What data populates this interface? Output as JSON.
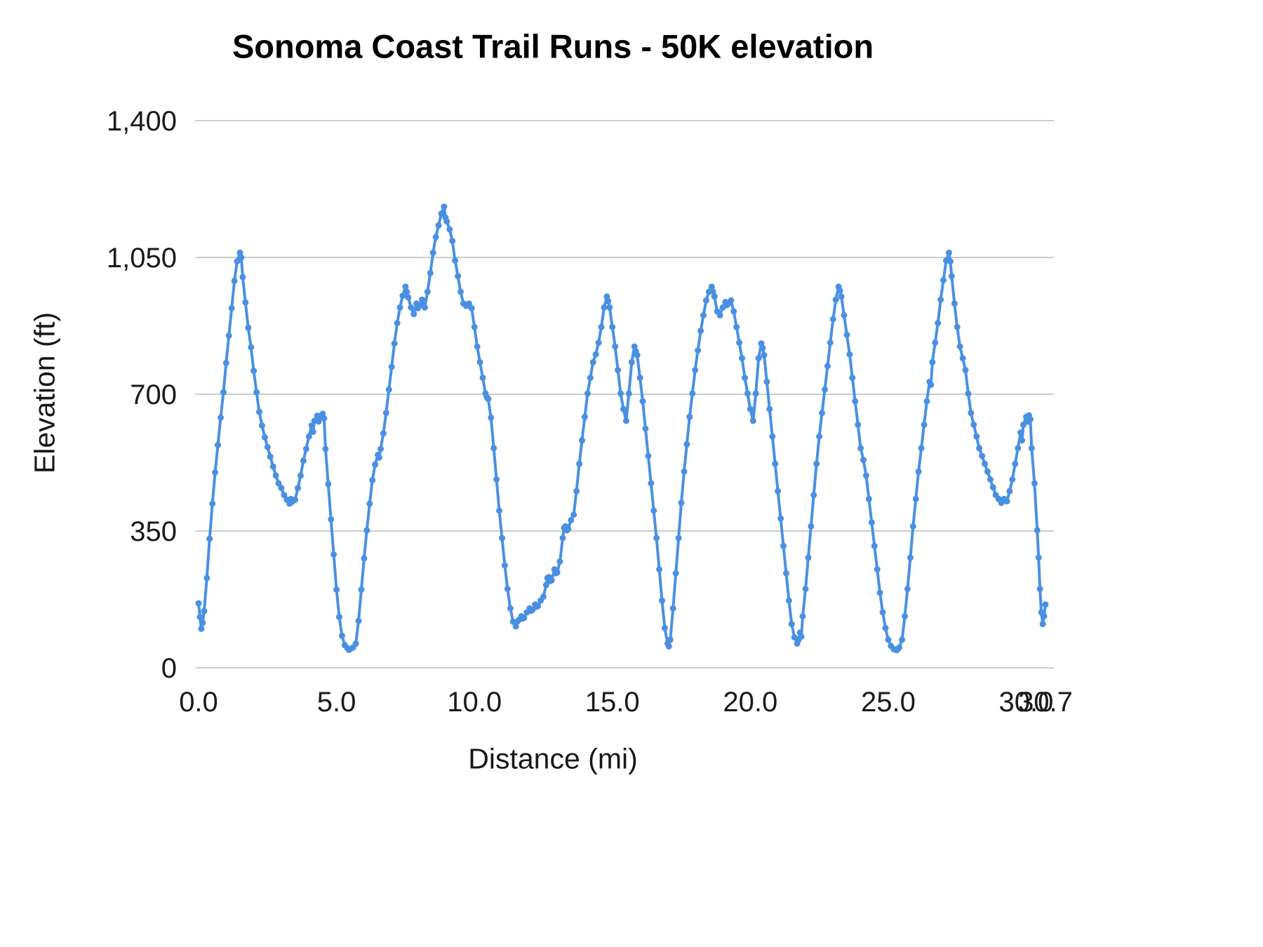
{
  "chart_data": {
    "type": "line",
    "title": "Sonoma Coast Trail Runs - 50K elevation",
    "xlabel": "Distance (mi)",
    "ylabel": "Elevation (ft)",
    "xlim": [
      0,
      30.7
    ],
    "ylim": [
      0,
      1400
    ],
    "grid": "horizontal-only",
    "legend": "none",
    "marker": "circle",
    "colors": {
      "line": "#4a90e2",
      "grid": "#cccccc",
      "tick_text": "#1a1a1a"
    },
    "yticks": [
      {
        "v": 0,
        "label": "0"
      },
      {
        "v": 350,
        "label": "350"
      },
      {
        "v": 700,
        "label": "700"
      },
      {
        "v": 1050,
        "label": "1,050"
      },
      {
        "v": 1400,
        "label": "1,400"
      }
    ],
    "xticks": [
      {
        "v": 0,
        "label": "0.0"
      },
      {
        "v": 5,
        "label": "5.0"
      },
      {
        "v": 10,
        "label": "10.0"
      },
      {
        "v": 15,
        "label": "15.0"
      },
      {
        "v": 20,
        "label": "20.0"
      },
      {
        "v": 25,
        "label": "25.0"
      },
      {
        "v": 30,
        "label": "30.0"
      },
      {
        "v": 30.7,
        "label": "30.7"
      }
    ],
    "series_name": "Elevation (ft)",
    "points": [
      [
        0,
        165
      ],
      [
        0.05,
        130
      ],
      [
        0.1,
        100
      ],
      [
        0.15,
        115
      ],
      [
        0.2,
        145
      ],
      [
        0.3,
        230
      ],
      [
        0.4,
        330
      ],
      [
        0.5,
        420
      ],
      [
        0.6,
        500
      ],
      [
        0.7,
        570
      ],
      [
        0.8,
        640
      ],
      [
        0.9,
        705
      ],
      [
        1.0,
        780
      ],
      [
        1.1,
        850
      ],
      [
        1.2,
        920
      ],
      [
        1.3,
        990
      ],
      [
        1.4,
        1040
      ],
      [
        1.5,
        1062
      ],
      [
        1.55,
        1050
      ],
      [
        1.6,
        1000
      ],
      [
        1.7,
        935
      ],
      [
        1.8,
        870
      ],
      [
        1.9,
        820
      ],
      [
        2.0,
        760
      ],
      [
        2.1,
        705
      ],
      [
        2.2,
        655
      ],
      [
        2.3,
        620
      ],
      [
        2.4,
        590
      ],
      [
        2.5,
        565
      ],
      [
        2.6,
        540
      ],
      [
        2.7,
        515
      ],
      [
        2.8,
        492
      ],
      [
        2.9,
        472
      ],
      [
        3.0,
        460
      ],
      [
        3.1,
        442
      ],
      [
        3.2,
        430
      ],
      [
        3.3,
        420
      ],
      [
        3.35,
        432
      ],
      [
        3.4,
        425
      ],
      [
        3.5,
        430
      ],
      [
        3.6,
        460
      ],
      [
        3.7,
        492
      ],
      [
        3.8,
        530
      ],
      [
        3.9,
        560
      ],
      [
        4.0,
        592
      ],
      [
        4.1,
        620
      ],
      [
        4.15,
        604
      ],
      [
        4.2,
        632
      ],
      [
        4.3,
        645
      ],
      [
        4.35,
        630
      ],
      [
        4.4,
        642
      ],
      [
        4.5,
        650
      ],
      [
        4.55,
        638
      ],
      [
        4.6,
        560
      ],
      [
        4.7,
        470
      ],
      [
        4.8,
        380
      ],
      [
        4.9,
        290
      ],
      [
        5.0,
        200
      ],
      [
        5.1,
        130
      ],
      [
        5.2,
        82
      ],
      [
        5.3,
        58
      ],
      [
        5.4,
        50
      ],
      [
        5.45,
        46
      ],
      [
        5.5,
        48
      ],
      [
        5.6,
        52
      ],
      [
        5.7,
        62
      ],
      [
        5.8,
        120
      ],
      [
        5.9,
        200
      ],
      [
        6.0,
        280
      ],
      [
        6.1,
        352
      ],
      [
        6.2,
        420
      ],
      [
        6.3,
        480
      ],
      [
        6.4,
        520
      ],
      [
        6.5,
        545
      ],
      [
        6.55,
        538
      ],
      [
        6.6,
        560
      ],
      [
        6.7,
        600
      ],
      [
        6.8,
        652
      ],
      [
        6.9,
        712
      ],
      [
        7.0,
        770
      ],
      [
        7.1,
        830
      ],
      [
        7.2,
        882
      ],
      [
        7.3,
        922
      ],
      [
        7.4,
        952
      ],
      [
        7.5,
        975
      ],
      [
        7.55,
        962
      ],
      [
        7.6,
        948
      ],
      [
        7.7,
        922
      ],
      [
        7.8,
        905
      ],
      [
        7.9,
        932
      ],
      [
        7.95,
        920
      ],
      [
        8.0,
        926
      ],
      [
        8.1,
        942
      ],
      [
        8.15,
        928
      ],
      [
        8.2,
        922
      ],
      [
        8.3,
        962
      ],
      [
        8.4,
        1010
      ],
      [
        8.5,
        1062
      ],
      [
        8.6,
        1102
      ],
      [
        8.7,
        1132
      ],
      [
        8.8,
        1162
      ],
      [
        8.9,
        1180
      ],
      [
        8.95,
        1152
      ],
      [
        9.0,
        1142
      ],
      [
        9.1,
        1122
      ],
      [
        9.2,
        1092
      ],
      [
        9.3,
        1042
      ],
      [
        9.4,
        1002
      ],
      [
        9.5,
        962
      ],
      [
        9.6,
        932
      ],
      [
        9.7,
        926
      ],
      [
        9.8,
        932
      ],
      [
        9.9,
        920
      ],
      [
        10.0,
        872
      ],
      [
        10.1,
        822
      ],
      [
        10.2,
        782
      ],
      [
        10.3,
        742
      ],
      [
        10.4,
        702
      ],
      [
        10.45,
        692
      ],
      [
        10.5,
        688
      ],
      [
        10.6,
        640
      ],
      [
        10.7,
        562
      ],
      [
        10.8,
        482
      ],
      [
        10.9,
        402
      ],
      [
        11.0,
        332
      ],
      [
        11.1,
        262
      ],
      [
        11.2,
        202
      ],
      [
        11.3,
        152
      ],
      [
        11.4,
        118
      ],
      [
        11.5,
        106
      ],
      [
        11.55,
        118
      ],
      [
        11.6,
        122
      ],
      [
        11.7,
        132
      ],
      [
        11.75,
        126
      ],
      [
        11.8,
        128
      ],
      [
        11.9,
        142
      ],
      [
        12.0,
        152
      ],
      [
        12.05,
        146
      ],
      [
        12.1,
        148
      ],
      [
        12.2,
        162
      ],
      [
        12.25,
        156
      ],
      [
        12.3,
        158
      ],
      [
        12.4,
        172
      ],
      [
        12.5,
        182
      ],
      [
        12.6,
        212
      ],
      [
        12.65,
        230
      ],
      [
        12.7,
        232
      ],
      [
        12.75,
        222
      ],
      [
        12.8,
        224
      ],
      [
        12.9,
        252
      ],
      [
        12.95,
        242
      ],
      [
        13.0,
        244
      ],
      [
        13.1,
        272
      ],
      [
        13.2,
        332
      ],
      [
        13.25,
        358
      ],
      [
        13.3,
        362
      ],
      [
        13.35,
        352
      ],
      [
        13.4,
        356
      ],
      [
        13.5,
        378
      ],
      [
        13.6,
        392
      ],
      [
        13.7,
        452
      ],
      [
        13.8,
        522
      ],
      [
        13.9,
        582
      ],
      [
        14.0,
        642
      ],
      [
        14.1,
        702
      ],
      [
        14.2,
        742
      ],
      [
        14.3,
        782
      ],
      [
        14.4,
        802
      ],
      [
        14.5,
        832
      ],
      [
        14.6,
        872
      ],
      [
        14.7,
        922
      ],
      [
        14.8,
        950
      ],
      [
        14.85,
        938
      ],
      [
        14.9,
        922
      ],
      [
        15.0,
        872
      ],
      [
        15.1,
        822
      ],
      [
        15.2,
        762
      ],
      [
        15.3,
        702
      ],
      [
        15.4,
        662
      ],
      [
        15.5,
        632
      ],
      [
        15.6,
        702
      ],
      [
        15.7,
        782
      ],
      [
        15.8,
        822
      ],
      [
        15.85,
        810
      ],
      [
        15.9,
        800
      ],
      [
        16.0,
        742
      ],
      [
        16.1,
        682
      ],
      [
        16.2,
        612
      ],
      [
        16.3,
        542
      ],
      [
        16.4,
        472
      ],
      [
        16.5,
        402
      ],
      [
        16.6,
        332
      ],
      [
        16.7,
        252
      ],
      [
        16.8,
        172
      ],
      [
        16.9,
        102
      ],
      [
        17.0,
        62
      ],
      [
        17.05,
        55
      ],
      [
        17.1,
        72
      ],
      [
        17.2,
        152
      ],
      [
        17.3,
        242
      ],
      [
        17.4,
        332
      ],
      [
        17.5,
        422
      ],
      [
        17.6,
        502
      ],
      [
        17.7,
        572
      ],
      [
        17.8,
        642
      ],
      [
        17.9,
        702
      ],
      [
        18.0,
        762
      ],
      [
        18.1,
        812
      ],
      [
        18.2,
        862
      ],
      [
        18.3,
        902
      ],
      [
        18.4,
        940
      ],
      [
        18.5,
        962
      ],
      [
        18.6,
        975
      ],
      [
        18.65,
        962
      ],
      [
        18.7,
        950
      ],
      [
        18.8,
        912
      ],
      [
        18.9,
        902
      ],
      [
        19.0,
        922
      ],
      [
        19.1,
        936
      ],
      [
        19.15,
        928
      ],
      [
        19.2,
        932
      ],
      [
        19.3,
        940
      ],
      [
        19.4,
        912
      ],
      [
        19.5,
        872
      ],
      [
        19.6,
        832
      ],
      [
        19.7,
        792
      ],
      [
        19.8,
        742
      ],
      [
        19.9,
        702
      ],
      [
        20.0,
        662
      ],
      [
        20.1,
        632
      ],
      [
        20.2,
        702
      ],
      [
        20.3,
        792
      ],
      [
        20.4,
        830
      ],
      [
        20.45,
        818
      ],
      [
        20.5,
        800
      ],
      [
        20.6,
        732
      ],
      [
        20.7,
        662
      ],
      [
        20.8,
        592
      ],
      [
        20.9,
        522
      ],
      [
        21.0,
        452
      ],
      [
        21.1,
        382
      ],
      [
        21.2,
        312
      ],
      [
        21.3,
        242
      ],
      [
        21.4,
        172
      ],
      [
        21.5,
        112
      ],
      [
        21.6,
        78
      ],
      [
        21.7,
        62
      ],
      [
        21.75,
        72
      ],
      [
        21.8,
        90
      ],
      [
        21.85,
        80
      ],
      [
        21.9,
        132
      ],
      [
        22.0,
        202
      ],
      [
        22.1,
        282
      ],
      [
        22.2,
        362
      ],
      [
        22.3,
        442
      ],
      [
        22.4,
        522
      ],
      [
        22.5,
        592
      ],
      [
        22.6,
        652
      ],
      [
        22.7,
        712
      ],
      [
        22.8,
        772
      ],
      [
        22.9,
        832
      ],
      [
        23.0,
        892
      ],
      [
        23.1,
        942
      ],
      [
        23.2,
        975
      ],
      [
        23.25,
        965
      ],
      [
        23.3,
        950
      ],
      [
        23.4,
        902
      ],
      [
        23.5,
        852
      ],
      [
        23.6,
        802
      ],
      [
        23.7,
        742
      ],
      [
        23.8,
        682
      ],
      [
        23.9,
        622
      ],
      [
        24.0,
        562
      ],
      [
        24.1,
        532
      ],
      [
        24.2,
        492
      ],
      [
        24.3,
        432
      ],
      [
        24.4,
        372
      ],
      [
        24.5,
        312
      ],
      [
        24.6,
        252
      ],
      [
        24.7,
        192
      ],
      [
        24.8,
        142
      ],
      [
        24.9,
        102
      ],
      [
        25.0,
        72
      ],
      [
        25.1,
        56
      ],
      [
        25.2,
        48
      ],
      [
        25.3,
        45
      ],
      [
        25.35,
        48
      ],
      [
        25.4,
        52
      ],
      [
        25.5,
        72
      ],
      [
        25.6,
        132
      ],
      [
        25.7,
        202
      ],
      [
        25.8,
        282
      ],
      [
        25.9,
        362
      ],
      [
        26.0,
        432
      ],
      [
        26.1,
        502
      ],
      [
        26.2,
        562
      ],
      [
        26.3,
        622
      ],
      [
        26.4,
        682
      ],
      [
        26.5,
        732
      ],
      [
        26.55,
        724
      ],
      [
        26.6,
        782
      ],
      [
        26.7,
        832
      ],
      [
        26.8,
        882
      ],
      [
        26.9,
        942
      ],
      [
        27.0,
        992
      ],
      [
        27.1,
        1042
      ],
      [
        27.2,
        1062
      ],
      [
        27.25,
        1040
      ],
      [
        27.3,
        1002
      ],
      [
        27.4,
        932
      ],
      [
        27.5,
        872
      ],
      [
        27.6,
        822
      ],
      [
        27.7,
        792
      ],
      [
        27.8,
        762
      ],
      [
        27.9,
        702
      ],
      [
        28.0,
        652
      ],
      [
        28.1,
        622
      ],
      [
        28.2,
        592
      ],
      [
        28.3,
        562
      ],
      [
        28.4,
        542
      ],
      [
        28.5,
        522
      ],
      [
        28.6,
        502
      ],
      [
        28.7,
        482
      ],
      [
        28.8,
        462
      ],
      [
        28.9,
        442
      ],
      [
        29.0,
        432
      ],
      [
        29.1,
        422
      ],
      [
        29.2,
        432
      ],
      [
        29.3,
        426
      ],
      [
        29.4,
        452
      ],
      [
        29.5,
        482
      ],
      [
        29.6,
        522
      ],
      [
        29.7,
        562
      ],
      [
        29.8,
        602
      ],
      [
        29.85,
        582
      ],
      [
        29.9,
        622
      ],
      [
        30.0,
        642
      ],
      [
        30.05,
        630
      ],
      [
        30.1,
        646
      ],
      [
        30.15,
        636
      ],
      [
        30.2,
        562
      ],
      [
        30.3,
        472
      ],
      [
        30.4,
        352
      ],
      [
        30.45,
        282
      ],
      [
        30.5,
        202
      ],
      [
        30.55,
        142
      ],
      [
        30.6,
        112
      ],
      [
        30.65,
        132
      ],
      [
        30.7,
        162
      ]
    ]
  }
}
